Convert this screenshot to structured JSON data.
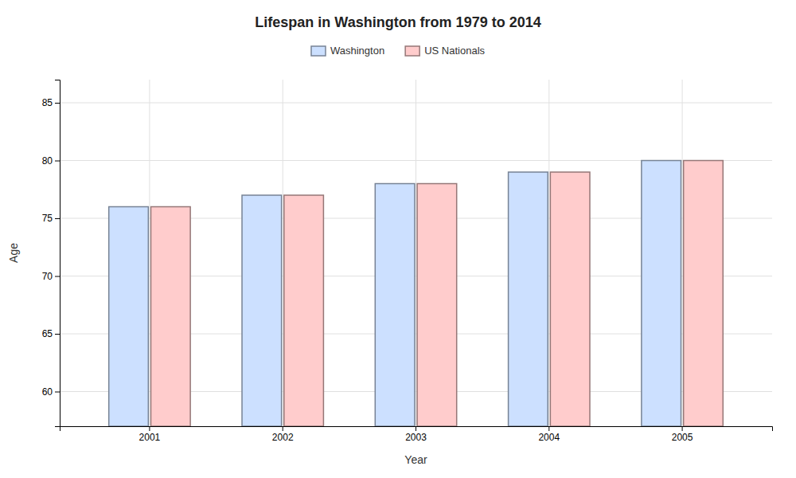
{
  "chart_data": {
    "type": "bar",
    "title": "Lifespan in Washington from 1979 to 2014",
    "xlabel": "Year",
    "ylabel": "Age",
    "categories": [
      "2001",
      "2002",
      "2003",
      "2004",
      "2005"
    ],
    "series": [
      {
        "name": "Washington",
        "color": "#cce0ff",
        "values": [
          76,
          77,
          78,
          79,
          80
        ]
      },
      {
        "name": "US Nationals",
        "color": "#ffcccc",
        "values": [
          76,
          77,
          78,
          79,
          80
        ]
      }
    ],
    "ylim": [
      57,
      87
    ],
    "yticks": [
      60,
      65,
      70,
      75,
      80,
      85
    ],
    "grid": true,
    "legend": "top"
  }
}
